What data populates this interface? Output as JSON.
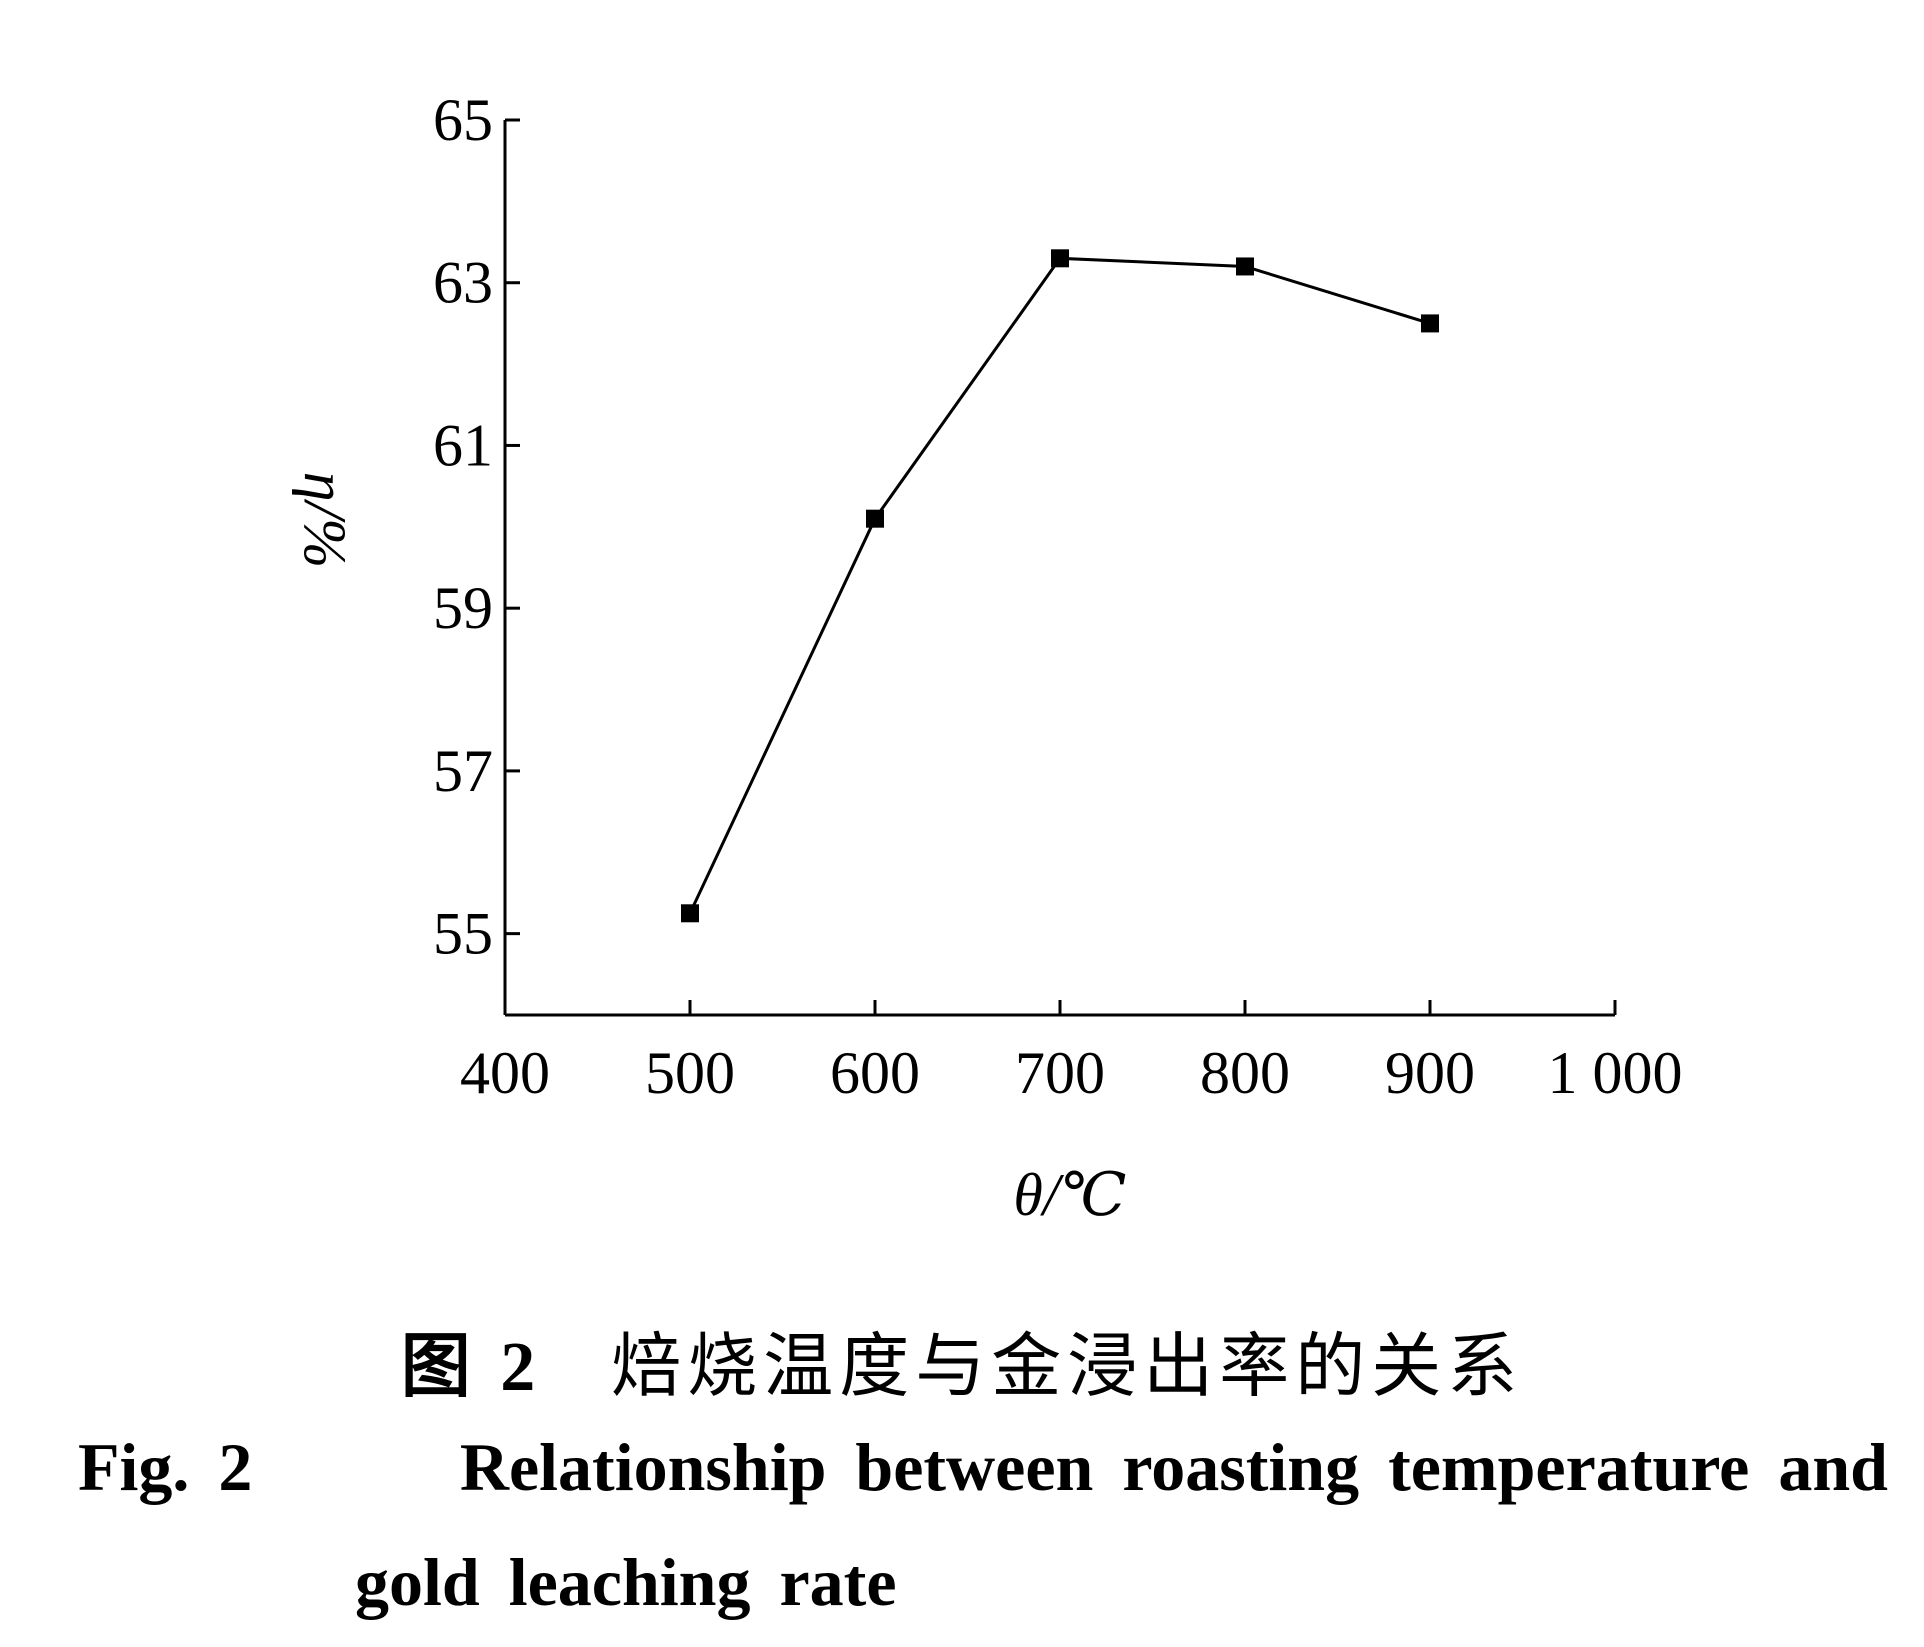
{
  "chart_data": {
    "type": "line",
    "x": [
      500,
      600,
      700,
      800,
      900
    ],
    "series": [
      {
        "values": [
          55.25,
          60.1,
          63.3,
          63.2,
          62.5
        ]
      }
    ],
    "xlabel": "θ/℃",
    "ylabel": "η/%",
    "xlim": [
      400,
      1000
    ],
    "ylim": [
      54,
      65
    ],
    "xticks": [
      400,
      500,
      600,
      700,
      800,
      900,
      1000
    ],
    "xtick_labels": [
      "400",
      "500",
      "600",
      "700",
      "800",
      "900",
      "1 000"
    ],
    "yticks": [
      55,
      57,
      59,
      61,
      63,
      65
    ],
    "ytick_labels": [
      "55",
      "57",
      "59",
      "61",
      "63",
      "65"
    ],
    "grid": false,
    "marker": "square",
    "color": "#000000"
  },
  "caption": {
    "cn_label": "图 2",
    "cn_text": "焙烧温度与金浸出率的关系",
    "en_label": "Fig. 2",
    "en_text_line1": "Relationship between roasting temperature and",
    "en_text_line2": "gold leaching rate"
  }
}
